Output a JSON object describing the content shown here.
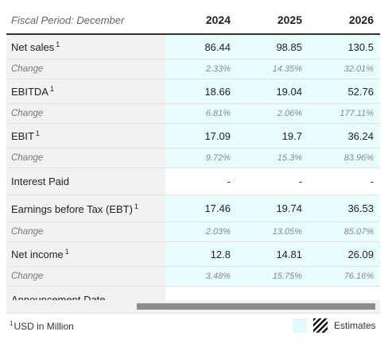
{
  "header": {
    "period_label": "Fiscal Period: December",
    "years": [
      "2024",
      "2025",
      "2026"
    ]
  },
  "rows": {
    "net_sales": {
      "label": "Net sales",
      "note": "1",
      "values": [
        "86.44",
        "98.85",
        "130.5"
      ]
    },
    "net_sales_change": {
      "label": "Change",
      "values": [
        "2.33%",
        "14.35%",
        "32.01%"
      ]
    },
    "ebitda": {
      "label": "EBITDA",
      "note": "1",
      "values": [
        "18.66",
        "19.04",
        "52.76"
      ]
    },
    "ebitda_change": {
      "label": "Change",
      "values": [
        "6.81%",
        "2.06%",
        "177.11%"
      ]
    },
    "ebit": {
      "label": "EBIT",
      "note": "1",
      "values": [
        "17.09",
        "19.7",
        "36.24"
      ]
    },
    "ebit_change": {
      "label": "Change",
      "values": [
        "9.72%",
        "15.3%",
        "83.96%"
      ]
    },
    "interest_paid": {
      "label": "Interest Paid",
      "values": [
        "-",
        "-",
        "-"
      ]
    },
    "ebt": {
      "label": "Earnings before Tax (EBT)",
      "note": "1",
      "values": [
        "17.46",
        "19.74",
        "36.53"
      ]
    },
    "ebt_change": {
      "label": "Change",
      "values": [
        "2.03%",
        "13.05%",
        "85.07%"
      ]
    },
    "net_income": {
      "label": "Net income",
      "note": "1",
      "values": [
        "12.8",
        "14.81",
        "26.09"
      ]
    },
    "net_income_change": {
      "label": "Change",
      "values": [
        "3.48%",
        "15.75%",
        "76.16%"
      ]
    },
    "announcement_date": {
      "label": "Announcement Date",
      "values": [
        "-",
        "-",
        "-"
      ]
    }
  },
  "footer": {
    "note_marker": "1",
    "note_text": "USD in Million",
    "legend_label": "Estimates"
  },
  "colors": {
    "estimate_bg": "#e8fbfd",
    "label_bg": "#f2f2f2",
    "header_rule": "#333333"
  }
}
